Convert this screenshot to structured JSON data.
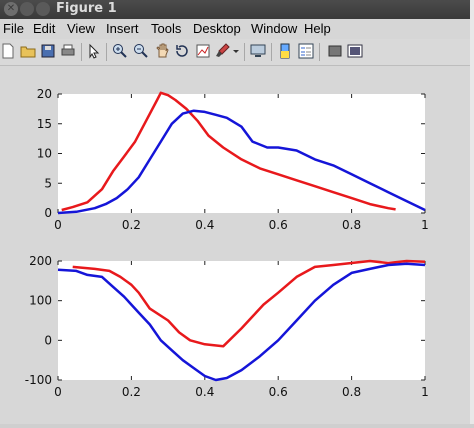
{
  "window": {
    "title": "Figure 1"
  },
  "menu": [
    "File",
    "Edit",
    "View",
    "Insert",
    "Tools",
    "Desktop",
    "Window",
    "Help"
  ],
  "toolbar": [
    "new-figure-icon",
    "open-file-icon",
    "save-icon",
    "print-icon",
    "edit-plot-arrow-icon",
    "zoom-in-icon",
    "zoom-out-icon",
    "pan-icon",
    "rotate-3d-icon",
    "data-cursor-icon",
    "brush-icon",
    "brush-dropdown-icon",
    "link-plot-icon",
    "insert-colorbar-icon",
    "insert-legend-icon",
    "hide-plot-tools-icon",
    "show-plot-tools-icon"
  ],
  "colors": {
    "red_series": "#e8191c",
    "blue_series": "#1515d8"
  },
  "chart_data": [
    {
      "type": "line",
      "xlim": [
        0,
        1
      ],
      "ylim": [
        0,
        20
      ],
      "xticks": [
        "0",
        "0.2",
        "0.4",
        "0.6",
        "0.8",
        "1"
      ],
      "yticks": [
        "0",
        "5",
        "10",
        "15",
        "20"
      ],
      "grid": false,
      "series": [
        {
          "color": "#e8191c",
          "x": [
            0.01,
            0.04,
            0.08,
            0.12,
            0.15,
            0.18,
            0.21,
            0.24,
            0.27,
            0.28,
            0.3,
            0.32,
            0.35,
            0.38,
            0.41,
            0.45,
            0.5,
            0.55,
            0.6,
            0.65,
            0.7,
            0.75,
            0.8,
            0.85,
            0.9,
            0.92
          ],
          "y": [
            0.5,
            1,
            1.8,
            4,
            7,
            9.5,
            12,
            15.5,
            19,
            20.2,
            19.8,
            19,
            17.5,
            15.5,
            13,
            11,
            9,
            7.5,
            6.5,
            5.5,
            4.5,
            3.5,
            2.5,
            1.5,
            0.8,
            0.6
          ]
        },
        {
          "color": "#1515d8",
          "x": [
            0,
            0.05,
            0.1,
            0.13,
            0.16,
            0.19,
            0.22,
            0.25,
            0.28,
            0.31,
            0.34,
            0.37,
            0.4,
            0.43,
            0.46,
            0.5,
            0.53,
            0.57,
            0.6,
            0.65,
            0.7,
            0.75,
            0.8,
            0.85,
            0.9,
            0.95,
            1
          ],
          "y": [
            0,
            0.2,
            0.8,
            1.5,
            2.5,
            4,
            6,
            9,
            12,
            15,
            16.7,
            17.2,
            17,
            16.5,
            16,
            14.5,
            12,
            11,
            11,
            10.5,
            9,
            8,
            6.5,
            5,
            3.5,
            2,
            0.5
          ]
        }
      ]
    },
    {
      "type": "line",
      "xlim": [
        0,
        1
      ],
      "ylim": [
        -100,
        200
      ],
      "xticks": [
        "0",
        "0.2",
        "0.4",
        "0.6",
        "0.8",
        "1"
      ],
      "yticks": [
        "-100",
        "0",
        "100",
        "200"
      ],
      "grid": false,
      "series": [
        {
          "color": "#e8191c",
          "x": [
            0.04,
            0.1,
            0.14,
            0.17,
            0.2,
            0.22,
            0.25,
            0.3,
            0.33,
            0.36,
            0.4,
            0.45,
            0.5,
            0.53,
            0.56,
            0.6,
            0.65,
            0.7,
            0.75,
            0.8,
            0.85,
            0.9,
            0.95,
            1
          ],
          "y": [
            185,
            180,
            175,
            160,
            140,
            120,
            80,
            50,
            20,
            0,
            -10,
            -15,
            30,
            60,
            90,
            120,
            160,
            185,
            190,
            195,
            200,
            195,
            200,
            198
          ]
        },
        {
          "color": "#1515d8",
          "x": [
            0,
            0.05,
            0.08,
            0.12,
            0.15,
            0.18,
            0.22,
            0.25,
            0.28,
            0.31,
            0.34,
            0.37,
            0.4,
            0.43,
            0.46,
            0.5,
            0.55,
            0.6,
            0.65,
            0.7,
            0.75,
            0.8,
            0.85,
            0.9,
            0.95,
            1
          ],
          "y": [
            178,
            175,
            165,
            160,
            135,
            110,
            70,
            40,
            0,
            -25,
            -50,
            -70,
            -90,
            -100,
            -95,
            -75,
            -40,
            0,
            50,
            100,
            140,
            170,
            180,
            190,
            193,
            190
          ]
        }
      ]
    }
  ]
}
